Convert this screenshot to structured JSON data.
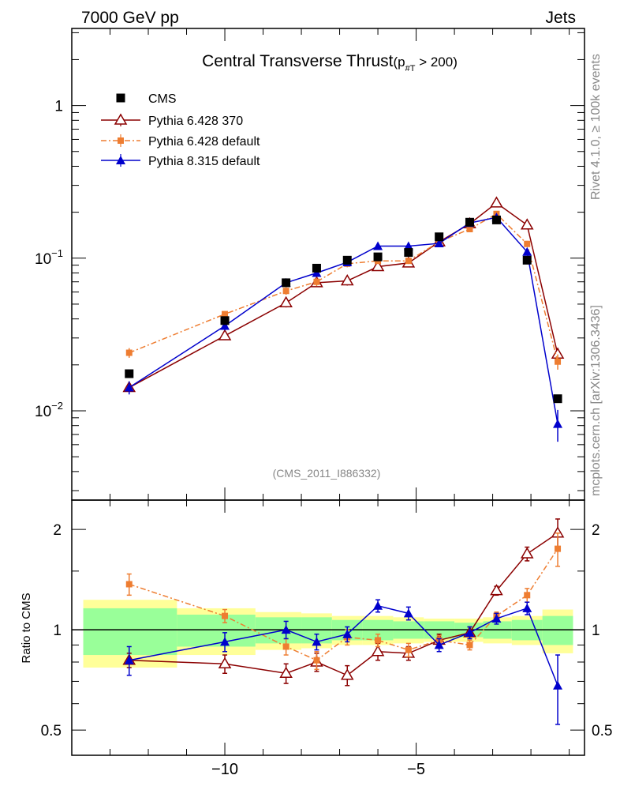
{
  "header": {
    "left": "7000 GeV pp",
    "right": "Jets"
  },
  "side_labels": {
    "rivet": "Rivet 4.1.0, ≥ 100k events",
    "mcplots": "mcplots.cern.ch [arXiv:1306.3436]"
  },
  "analysis_id": "(CMS_2011_I886332)",
  "chart_data": {
    "type": "line",
    "title": "Central Transverse Thrust",
    "title_suffix": "(p",
    "title_sub": "#T",
    "title_cut": " > 200)",
    "x": [
      -12.5,
      -10.0,
      -8.4,
      -7.6,
      -6.8,
      -6.0,
      -5.2,
      -4.4,
      -3.6,
      -2.9,
      -2.1,
      -1.3
    ],
    "xlim": [
      -14.0,
      -0.6
    ],
    "xticks": [
      -10,
      -5
    ],
    "xtick_labels": [
      "−10",
      "−5"
    ],
    "main": {
      "yscale": "log",
      "ylim": [
        0.0026,
        3.2
      ],
      "yticks": [
        0.01,
        0.1,
        1
      ],
      "ytick_labels": [
        {
          "base": "10",
          "exp": "−2"
        },
        {
          "base": "10",
          "exp": "−1"
        },
        {
          "base": "1",
          "exp": ""
        }
      ]
    },
    "ratio": {
      "ylabel": "Ratio to CMS",
      "yscale": "log",
      "ylim": [
        0.42,
        2.45
      ],
      "yticks": [
        0.5,
        1,
        2
      ],
      "ytick_labels": [
        "0.5",
        "1",
        "2"
      ],
      "band_green": [
        0.16,
        0.11,
        0.09,
        0.09,
        0.07,
        0.07,
        0.06,
        0.06,
        0.05,
        0.06,
        0.07,
        0.1
      ],
      "band_yellow": [
        0.23,
        0.16,
        0.13,
        0.12,
        0.1,
        0.1,
        0.09,
        0.08,
        0.08,
        0.09,
        0.1,
        0.15
      ]
    },
    "series": [
      {
        "name": "CMS",
        "color": "#000000",
        "marker": "square",
        "values": [
          0.0175,
          0.039,
          0.069,
          0.086,
          0.097,
          0.102,
          0.109,
          0.138,
          0.172,
          0.178,
          0.097,
          0.012
        ],
        "errors": [
          0.0007,
          0.0015,
          0.0025,
          0.003,
          0.003,
          0.003,
          0.003,
          0.004,
          0.005,
          0.005,
          0.003,
          0.0005
        ]
      },
      {
        "name": "Pythia 6.428 370",
        "color": "#8b0000",
        "marker": "triangle-open",
        "dash": "",
        "values": [
          0.0142,
          0.031,
          0.051,
          0.069,
          0.071,
          0.088,
          0.093,
          0.128,
          0.168,
          0.23,
          0.165,
          0.0235
        ],
        "ratio": [
          0.81,
          0.79,
          0.74,
          0.8,
          0.73,
          0.86,
          0.85,
          0.93,
          0.98,
          1.31,
          1.69,
          1.95
        ],
        "ratio_err": [
          0.04,
          0.05,
          0.05,
          0.05,
          0.05,
          0.05,
          0.04,
          0.04,
          0.04,
          0.04,
          0.08,
          0.2
        ]
      },
      {
        "name": "Pythia 6.428 default",
        "color": "#ee7d31",
        "marker": "square-small",
        "dash": "7 3 2 3",
        "values": [
          0.024,
          0.043,
          0.061,
          0.07,
          0.092,
          0.096,
          0.096,
          0.128,
          0.155,
          0.195,
          0.124,
          0.021
        ],
        "ratio": [
          1.37,
          1.1,
          0.89,
          0.81,
          0.95,
          0.93,
          0.87,
          0.93,
          0.9,
          1.1,
          1.27,
          1.75
        ],
        "ratio_err": [
          0.1,
          0.05,
          0.05,
          0.05,
          0.05,
          0.04,
          0.04,
          0.03,
          0.03,
          0.03,
          0.06,
          0.2
        ]
      },
      {
        "name": "Pythia 8.315 default",
        "color": "#0000cc",
        "marker": "triangle-filled",
        "dash": "",
        "values": [
          0.0142,
          0.036,
          0.069,
          0.08,
          0.094,
          0.12,
          0.12,
          0.125,
          0.17,
          0.185,
          0.11,
          0.0082
        ],
        "ratio": [
          0.81,
          0.92,
          1.0,
          0.92,
          0.97,
          1.18,
          1.12,
          0.9,
          0.98,
          1.08,
          1.16,
          0.68
        ],
        "ratio_err": [
          0.08,
          0.06,
          0.06,
          0.05,
          0.05,
          0.05,
          0.05,
          0.04,
          0.04,
          0.04,
          0.05,
          0.16
        ]
      }
    ]
  }
}
